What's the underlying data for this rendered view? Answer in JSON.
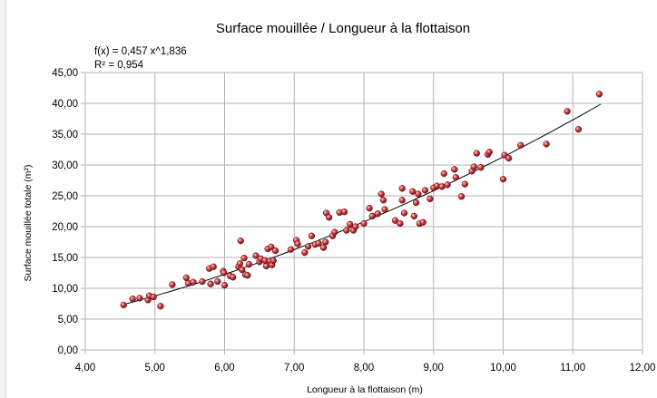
{
  "chart_data": {
    "type": "scatter",
    "title": "Surface mouillée / Longueur à la flottaison",
    "xlabel": "Longueur à la flottaison (m)",
    "ylabel": "Surface mouillée totale (m²)",
    "xlim": [
      4,
      12
    ],
    "ylim": [
      0,
      45
    ],
    "x_ticks": [
      "4,00",
      "5,00",
      "6,00",
      "7,00",
      "8,00",
      "9,00",
      "10,00",
      "11,00",
      "12,00"
    ],
    "y_ticks": [
      "0,00",
      "5,00",
      "10,00",
      "15,00",
      "20,00",
      "25,00",
      "30,00",
      "35,00",
      "40,00",
      "45,00"
    ],
    "grid": true,
    "legend": "none",
    "point_color": "#c0282d",
    "trendline": {
      "equation_label": "f(x) = 0,457 x^1,836",
      "r2_label": "R² = 0,954",
      "coefficient": 0.457,
      "exponent": 1.836,
      "x_range": [
        4.55,
        11.4
      ],
      "color": "#000000"
    },
    "series": [
      {
        "points": [
          [
            4.55,
            7.3
          ],
          [
            4.68,
            8.3
          ],
          [
            4.78,
            8.4
          ],
          [
            4.9,
            8.1
          ],
          [
            4.92,
            8.8
          ],
          [
            4.98,
            8.6
          ],
          [
            5.08,
            7.1
          ],
          [
            5.25,
            10.6
          ],
          [
            5.45,
            11.7
          ],
          [
            5.48,
            10.8
          ],
          [
            5.55,
            11.0
          ],
          [
            5.68,
            11.1
          ],
          [
            5.78,
            13.2
          ],
          [
            5.8,
            10.7
          ],
          [
            5.84,
            13.5
          ],
          [
            5.9,
            11.1
          ],
          [
            5.98,
            12.8
          ],
          [
            5.99,
            12.5
          ],
          [
            6.0,
            10.5
          ],
          [
            6.08,
            12.0
          ],
          [
            6.12,
            11.8
          ],
          [
            6.2,
            13.5
          ],
          [
            6.22,
            14.0
          ],
          [
            6.23,
            17.7
          ],
          [
            6.25,
            13.0
          ],
          [
            6.28,
            14.9
          ],
          [
            6.3,
            12.2
          ],
          [
            6.33,
            12.1
          ],
          [
            6.35,
            13.9
          ],
          [
            6.45,
            15.3
          ],
          [
            6.5,
            14.3
          ],
          [
            6.52,
            14.8
          ],
          [
            6.58,
            14.5
          ],
          [
            6.6,
            13.6
          ],
          [
            6.62,
            16.4
          ],
          [
            6.65,
            14.4
          ],
          [
            6.67,
            16.7
          ],
          [
            6.68,
            13.8
          ],
          [
            6.7,
            14.5
          ],
          [
            6.73,
            16.1
          ],
          [
            6.95,
            16.3
          ],
          [
            7.03,
            17.8
          ],
          [
            7.05,
            17.2
          ],
          [
            7.15,
            15.8
          ],
          [
            7.2,
            16.8
          ],
          [
            7.25,
            18.5
          ],
          [
            7.3,
            17.1
          ],
          [
            7.35,
            17.3
          ],
          [
            7.42,
            16.6
          ],
          [
            7.45,
            17.5
          ],
          [
            7.46,
            22.2
          ],
          [
            7.5,
            21.5
          ],
          [
            7.55,
            18.5
          ],
          [
            7.58,
            19.1
          ],
          [
            7.65,
            22.3
          ],
          [
            7.72,
            22.4
          ],
          [
            7.75,
            19.4
          ],
          [
            7.8,
            20.4
          ],
          [
            7.85,
            19.4
          ],
          [
            7.88,
            20.0
          ],
          [
            8.0,
            20.5
          ],
          [
            8.08,
            23.0
          ],
          [
            8.12,
            21.7
          ],
          [
            8.2,
            22.1
          ],
          [
            8.25,
            25.3
          ],
          [
            8.28,
            24.3
          ],
          [
            8.3,
            22.8
          ],
          [
            8.45,
            21.0
          ],
          [
            8.52,
            20.5
          ],
          [
            8.55,
            26.2
          ],
          [
            8.55,
            24.3
          ],
          [
            8.58,
            22.2
          ],
          [
            8.7,
            25.7
          ],
          [
            8.72,
            21.7
          ],
          [
            8.75,
            23.9
          ],
          [
            8.78,
            25.3
          ],
          [
            8.8,
            20.5
          ],
          [
            8.85,
            20.7
          ],
          [
            8.88,
            25.9
          ],
          [
            8.95,
            24.5
          ],
          [
            9.0,
            26.3
          ],
          [
            9.05,
            26.6
          ],
          [
            9.12,
            26.5
          ],
          [
            9.15,
            28.6
          ],
          [
            9.2,
            26.8
          ],
          [
            9.3,
            29.3
          ],
          [
            9.32,
            28.0
          ],
          [
            9.4,
            24.9
          ],
          [
            9.45,
            26.9
          ],
          [
            9.55,
            29.0
          ],
          [
            9.58,
            29.7
          ],
          [
            9.62,
            31.9
          ],
          [
            9.68,
            29.6
          ],
          [
            9.78,
            31.7
          ],
          [
            9.8,
            32.1
          ],
          [
            10.0,
            27.7
          ],
          [
            10.02,
            31.6
          ],
          [
            10.08,
            31.1
          ],
          [
            10.25,
            33.2
          ],
          [
            10.62,
            33.4
          ],
          [
            10.92,
            38.7
          ],
          [
            11.08,
            35.8
          ],
          [
            11.38,
            41.5
          ]
        ]
      }
    ]
  }
}
